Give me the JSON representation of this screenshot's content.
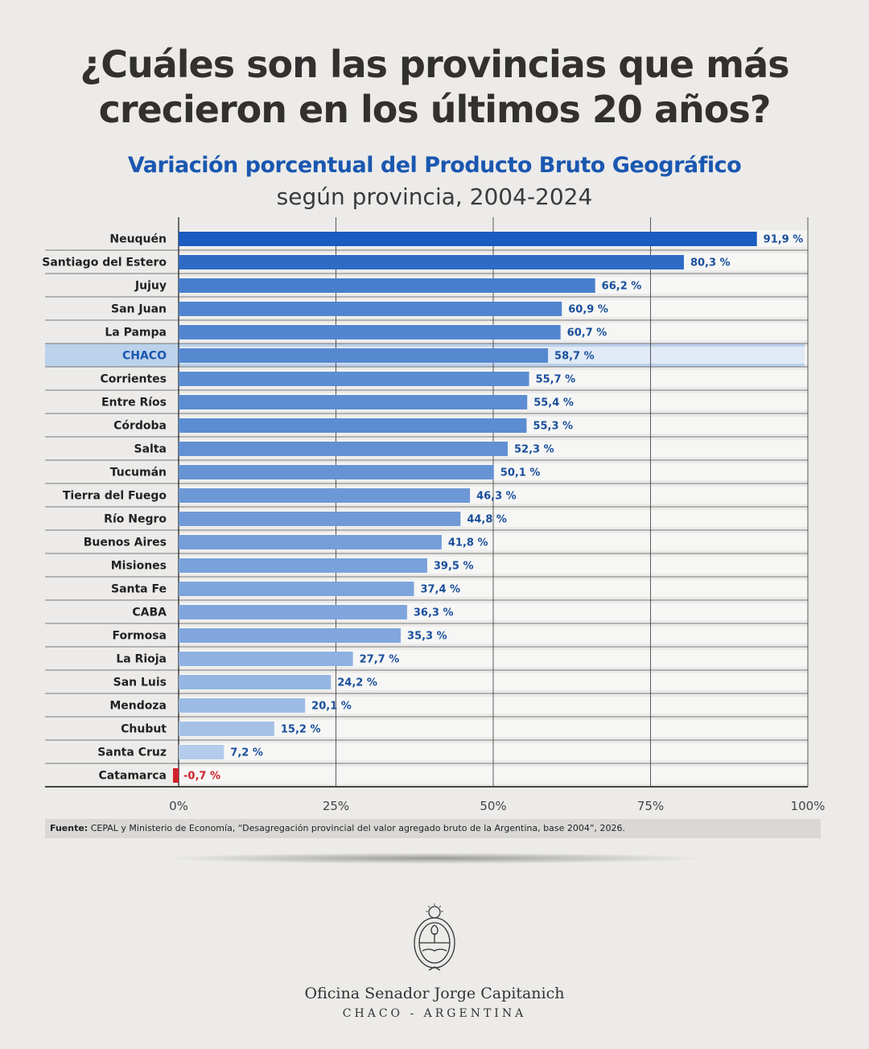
{
  "header": {
    "title_line1": "¿Cuáles son las provincias que más",
    "title_line2": "crecieron en los últimos 20 años?",
    "subtitle": "Variación porcentual del Producto Bruto Geográfico",
    "subtitle2": "según provincia, 2004-2024"
  },
  "chart_data": {
    "type": "bar",
    "orientation": "horizontal",
    "title": "Variación porcentual del Producto Bruto Geográfico según provincia, 2004-2024",
    "xlabel": "",
    "ylabel": "",
    "xlim": [
      0,
      100
    ],
    "x_ticks": [
      "0%",
      "25%",
      "50%",
      "75%",
      "100%"
    ],
    "x_tick_values": [
      0,
      25,
      50,
      75,
      100
    ],
    "grid": true,
    "highlight": "CHACO",
    "categories": [
      "Neuquén",
      "Santiago del Estero",
      "Jujuy",
      "San Juan",
      "La Pampa",
      "CHACO",
      "Corrientes",
      "Entre Ríos",
      "Córdoba",
      "Salta",
      "Tucumán",
      "Tierra del Fuego",
      "Río Negro",
      "Buenos Aires",
      "Misiones",
      "Santa Fe",
      "CABA",
      "Formosa",
      "La Rioja",
      "San Luis",
      "Mendoza",
      "Chubut",
      "Santa Cruz",
      "Catamarca"
    ],
    "values": [
      91.9,
      80.3,
      66.2,
      60.9,
      60.7,
      58.7,
      55.7,
      55.4,
      55.3,
      52.3,
      50.1,
      46.3,
      44.8,
      41.8,
      39.5,
      37.4,
      36.3,
      35.3,
      27.7,
      24.2,
      20.1,
      15.2,
      7.2,
      -0.7
    ],
    "labels": [
      "91,9 %",
      "80,3 %",
      "66,2 %",
      "60,9 %",
      "60,7 %",
      "58,7 %",
      "55,7 %",
      "55,4 %",
      "55,3 %",
      "52,3 %",
      "50,1 %",
      "46,3 %",
      "44,8 %",
      "41,8 %",
      "39,5 %",
      "37,4 %",
      "36,3 %",
      "35,3 %",
      "27,7 %",
      "24,2 %",
      "20,1 %",
      "15,2 %",
      "7,2 %",
      "-0,7 %"
    ],
    "colors": {
      "positive_dark": "#1a5cbf",
      "positive_light": "#b9cfec",
      "negative": "#d0202a",
      "highlight_band": "#bcd1ea",
      "label": "#1a4f9c",
      "highlight_label": "#1a57b0"
    }
  },
  "source": {
    "label": "Fuente:",
    "text": " CEPAL y Ministerio de Economía, “Desagregación provincial del valor agregado bruto de la Argentina, base 2004”, 2026."
  },
  "footer": {
    "office": "Oficina Senador Jorge Capitanich",
    "place": "CHACO - ARGENTINA",
    "logo_icon": "argentina-coat-of-arms-icon"
  }
}
